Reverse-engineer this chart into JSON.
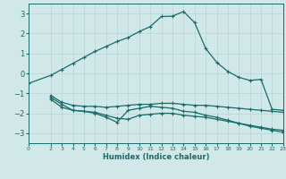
{
  "background_color": "#d1e8e8",
  "grid_color": "#b8d4d4",
  "line_color": "#1a6b6b",
  "xlabel": "Humidex (Indice chaleur)",
  "xlim": [
    0,
    23
  ],
  "ylim": [
    -3.5,
    3.5
  ],
  "yticks": [
    -3,
    -2,
    -1,
    0,
    1,
    2,
    3
  ],
  "xticks": [
    0,
    2,
    3,
    4,
    5,
    6,
    7,
    8,
    9,
    10,
    11,
    12,
    13,
    14,
    15,
    16,
    17,
    18,
    19,
    20,
    21,
    22,
    23
  ],
  "line1_x": [
    0,
    2,
    3,
    4,
    5,
    6,
    7,
    8,
    9,
    10,
    11,
    12,
    13,
    14,
    15,
    16,
    17,
    18,
    19,
    20,
    21,
    22,
    23
  ],
  "line1_y": [
    -0.5,
    -0.1,
    0.2,
    0.5,
    0.8,
    1.1,
    1.35,
    1.6,
    1.8,
    2.1,
    2.35,
    2.85,
    2.87,
    3.1,
    2.55,
    1.25,
    0.55,
    0.1,
    -0.2,
    -0.35,
    -0.3,
    -1.8,
    -1.85
  ],
  "line2_x": [
    2,
    3,
    4,
    5,
    6,
    7,
    8,
    9,
    10,
    11,
    12,
    13,
    14,
    15,
    16,
    17,
    18,
    19,
    20,
    21,
    22,
    23
  ],
  "line2_y": [
    -1.1,
    -1.45,
    -1.6,
    -1.65,
    -1.65,
    -1.7,
    -1.65,
    -1.6,
    -1.55,
    -1.55,
    -1.5,
    -1.5,
    -1.55,
    -1.6,
    -1.6,
    -1.65,
    -1.7,
    -1.75,
    -1.8,
    -1.85,
    -1.9,
    -1.95
  ],
  "line3_x": [
    2,
    3,
    4,
    5,
    6,
    7,
    8,
    9,
    10,
    11,
    12,
    13,
    14,
    15,
    16,
    17,
    18,
    19,
    20,
    21,
    22,
    23
  ],
  "line3_y": [
    -1.3,
    -1.7,
    -1.85,
    -1.9,
    -1.95,
    -2.1,
    -2.25,
    -2.3,
    -2.1,
    -2.05,
    -2.0,
    -2.0,
    -2.1,
    -2.15,
    -2.2,
    -2.3,
    -2.4,
    -2.5,
    -2.6,
    -2.7,
    -2.8,
    -2.85
  ],
  "line4_x": [
    2,
    3,
    4,
    5,
    6,
    7,
    8,
    9,
    10,
    11,
    12,
    13,
    14,
    15,
    16,
    17,
    18,
    19,
    20,
    21,
    22,
    23
  ],
  "line4_y": [
    -1.2,
    -1.55,
    -1.85,
    -1.9,
    -2.0,
    -2.2,
    -2.45,
    -1.85,
    -1.75,
    -1.65,
    -1.7,
    -1.75,
    -1.9,
    -1.95,
    -2.1,
    -2.2,
    -2.35,
    -2.5,
    -2.65,
    -2.75,
    -2.85,
    -2.95
  ]
}
